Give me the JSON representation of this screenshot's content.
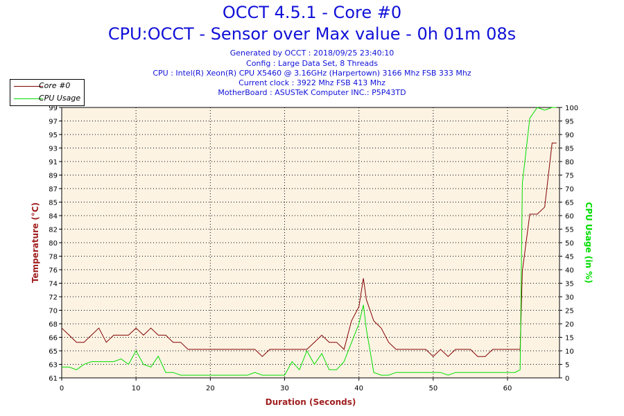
{
  "header": {
    "title": "OCCT 4.5.1 - Core #0",
    "subtitle": "CPU:OCCT - Sensor over Max value - 0h 01m 08s",
    "info_lines": [
      "Generated by OCCT : 2018/09/25 23:40:10",
      "Config : Large Data Set, 8 Threads",
      "CPU : Intel(R) Xeon(R) CPU X5460 @ 3.16GHz (Harpertown) 3166 Mhz FSB 333 Mhz",
      "Current clock : 3922 Mhz FSB 413 Mhz",
      "MotherBoard : ASUSTeK Computer INC.: P5P43TD"
    ]
  },
  "legend": {
    "items": [
      {
        "label": "Core #0",
        "color": "#800000"
      },
      {
        "label": "CPU Usage",
        "color": "#00dd00"
      }
    ]
  },
  "colors": {
    "plot_background": "#fdf3e3",
    "temperature": "#800000",
    "cpu_usage": "#00dd00",
    "title": "#1010d8",
    "left_axis_label": "#a02020",
    "right_axis_label": "#00dd00",
    "x_axis_label": "#a02020"
  },
  "chart_data": {
    "type": "line",
    "xlabel": "Duration (Seconds)",
    "ylabel": "Temperature (°C)",
    "y2label": "CPU Usage (in %)",
    "xlim": [
      0,
      67
    ],
    "ylim": [
      61,
      99
    ],
    "y2lim": [
      0,
      100
    ],
    "grid": true,
    "legend_position": "top-left",
    "x_ticks": [
      "0",
      "10",
      "20",
      "30",
      "40",
      "50",
      "60"
    ],
    "y_ticks": [
      "61",
      "63",
      "65",
      "66",
      "68",
      "70",
      "72",
      "74",
      "76",
      "78",
      "80",
      "82",
      "84",
      "85",
      "87",
      "89",
      "91",
      "93",
      "95",
      "97",
      "99"
    ],
    "y2_ticks": [
      "0",
      "5",
      "10",
      "15",
      "20",
      "25",
      "30",
      "35",
      "40",
      "45",
      "50",
      "55",
      "60",
      "65",
      "70",
      "75",
      "80",
      "85",
      "90",
      "95",
      "100"
    ],
    "series": [
      {
        "name": "Core #0",
        "axis": "left",
        "points": [
          [
            0,
            68
          ],
          [
            1,
            67
          ],
          [
            2,
            66
          ],
          [
            3,
            66
          ],
          [
            4,
            67
          ],
          [
            5,
            68
          ],
          [
            6,
            66
          ],
          [
            7,
            67
          ],
          [
            8,
            67
          ],
          [
            9,
            67
          ],
          [
            10,
            68
          ],
          [
            11,
            67
          ],
          [
            12,
            68
          ],
          [
            13,
            67
          ],
          [
            14,
            67
          ],
          [
            15,
            66
          ],
          [
            16,
            66
          ],
          [
            17,
            65
          ],
          [
            18,
            65
          ],
          [
            19,
            65
          ],
          [
            20,
            65
          ],
          [
            21,
            65
          ],
          [
            22,
            65
          ],
          [
            23,
            65
          ],
          [
            24,
            65
          ],
          [
            25,
            65
          ],
          [
            26,
            65
          ],
          [
            27,
            64
          ],
          [
            28,
            65
          ],
          [
            29,
            65
          ],
          [
            30,
            65
          ],
          [
            31,
            65
          ],
          [
            32,
            65
          ],
          [
            33,
            65
          ],
          [
            34,
            66
          ],
          [
            35,
            67
          ],
          [
            36,
            66
          ],
          [
            37,
            66
          ],
          [
            38,
            65
          ],
          [
            39,
            69
          ],
          [
            40,
            71
          ],
          [
            40.6,
            75
          ],
          [
            41,
            72
          ],
          [
            42,
            69
          ],
          [
            43,
            68
          ],
          [
            44,
            66
          ],
          [
            45,
            65
          ],
          [
            46,
            65
          ],
          [
            47,
            65
          ],
          [
            48,
            65
          ],
          [
            49,
            65
          ],
          [
            50,
            64
          ],
          [
            51,
            65
          ],
          [
            52,
            64
          ],
          [
            53,
            65
          ],
          [
            54,
            65
          ],
          [
            55,
            65
          ],
          [
            56,
            64
          ],
          [
            57,
            64
          ],
          [
            58,
            65
          ],
          [
            59,
            65
          ],
          [
            60,
            65
          ],
          [
            61,
            65
          ],
          [
            61.7,
            65
          ],
          [
            62,
            76
          ],
          [
            63,
            84
          ],
          [
            64,
            84
          ],
          [
            65,
            85
          ],
          [
            66,
            94
          ],
          [
            66.6,
            94
          ]
        ]
      },
      {
        "name": "CPU Usage",
        "axis": "right",
        "points": [
          [
            0,
            4
          ],
          [
            1,
            4
          ],
          [
            2,
            3
          ],
          [
            3,
            5
          ],
          [
            4,
            6
          ],
          [
            5,
            6
          ],
          [
            6,
            6
          ],
          [
            7,
            6
          ],
          [
            8,
            7
          ],
          [
            9,
            5
          ],
          [
            10,
            10
          ],
          [
            11,
            5
          ],
          [
            12,
            4
          ],
          [
            13,
            8
          ],
          [
            14,
            2
          ],
          [
            15,
            2
          ],
          [
            16,
            1
          ],
          [
            17,
            1
          ],
          [
            18,
            1
          ],
          [
            19,
            1
          ],
          [
            20,
            1
          ],
          [
            21,
            1
          ],
          [
            22,
            1
          ],
          [
            23,
            1
          ],
          [
            24,
            1
          ],
          [
            25,
            1
          ],
          [
            26,
            2
          ],
          [
            27,
            1
          ],
          [
            28,
            1
          ],
          [
            29,
            1
          ],
          [
            30,
            1
          ],
          [
            31,
            6
          ],
          [
            32,
            3
          ],
          [
            33,
            10
          ],
          [
            34,
            5
          ],
          [
            35,
            9
          ],
          [
            36,
            3
          ],
          [
            37,
            3
          ],
          [
            38,
            6
          ],
          [
            39,
            13
          ],
          [
            40,
            20
          ],
          [
            40.6,
            27
          ],
          [
            41,
            18
          ],
          [
            42,
            2
          ],
          [
            43,
            1
          ],
          [
            44,
            1
          ],
          [
            45,
            2
          ],
          [
            46,
            2
          ],
          [
            47,
            2
          ],
          [
            48,
            2
          ],
          [
            49,
            2
          ],
          [
            50,
            2
          ],
          [
            51,
            2
          ],
          [
            52,
            1
          ],
          [
            53,
            2
          ],
          [
            54,
            2
          ],
          [
            55,
            2
          ],
          [
            56,
            2
          ],
          [
            57,
            2
          ],
          [
            58,
            2
          ],
          [
            59,
            2
          ],
          [
            60,
            2
          ],
          [
            61,
            2
          ],
          [
            61.7,
            3
          ],
          [
            62,
            72
          ],
          [
            63,
            96
          ],
          [
            64,
            100
          ],
          [
            65,
            99
          ],
          [
            66,
            100
          ],
          [
            66.6,
            100
          ]
        ]
      }
    ]
  }
}
